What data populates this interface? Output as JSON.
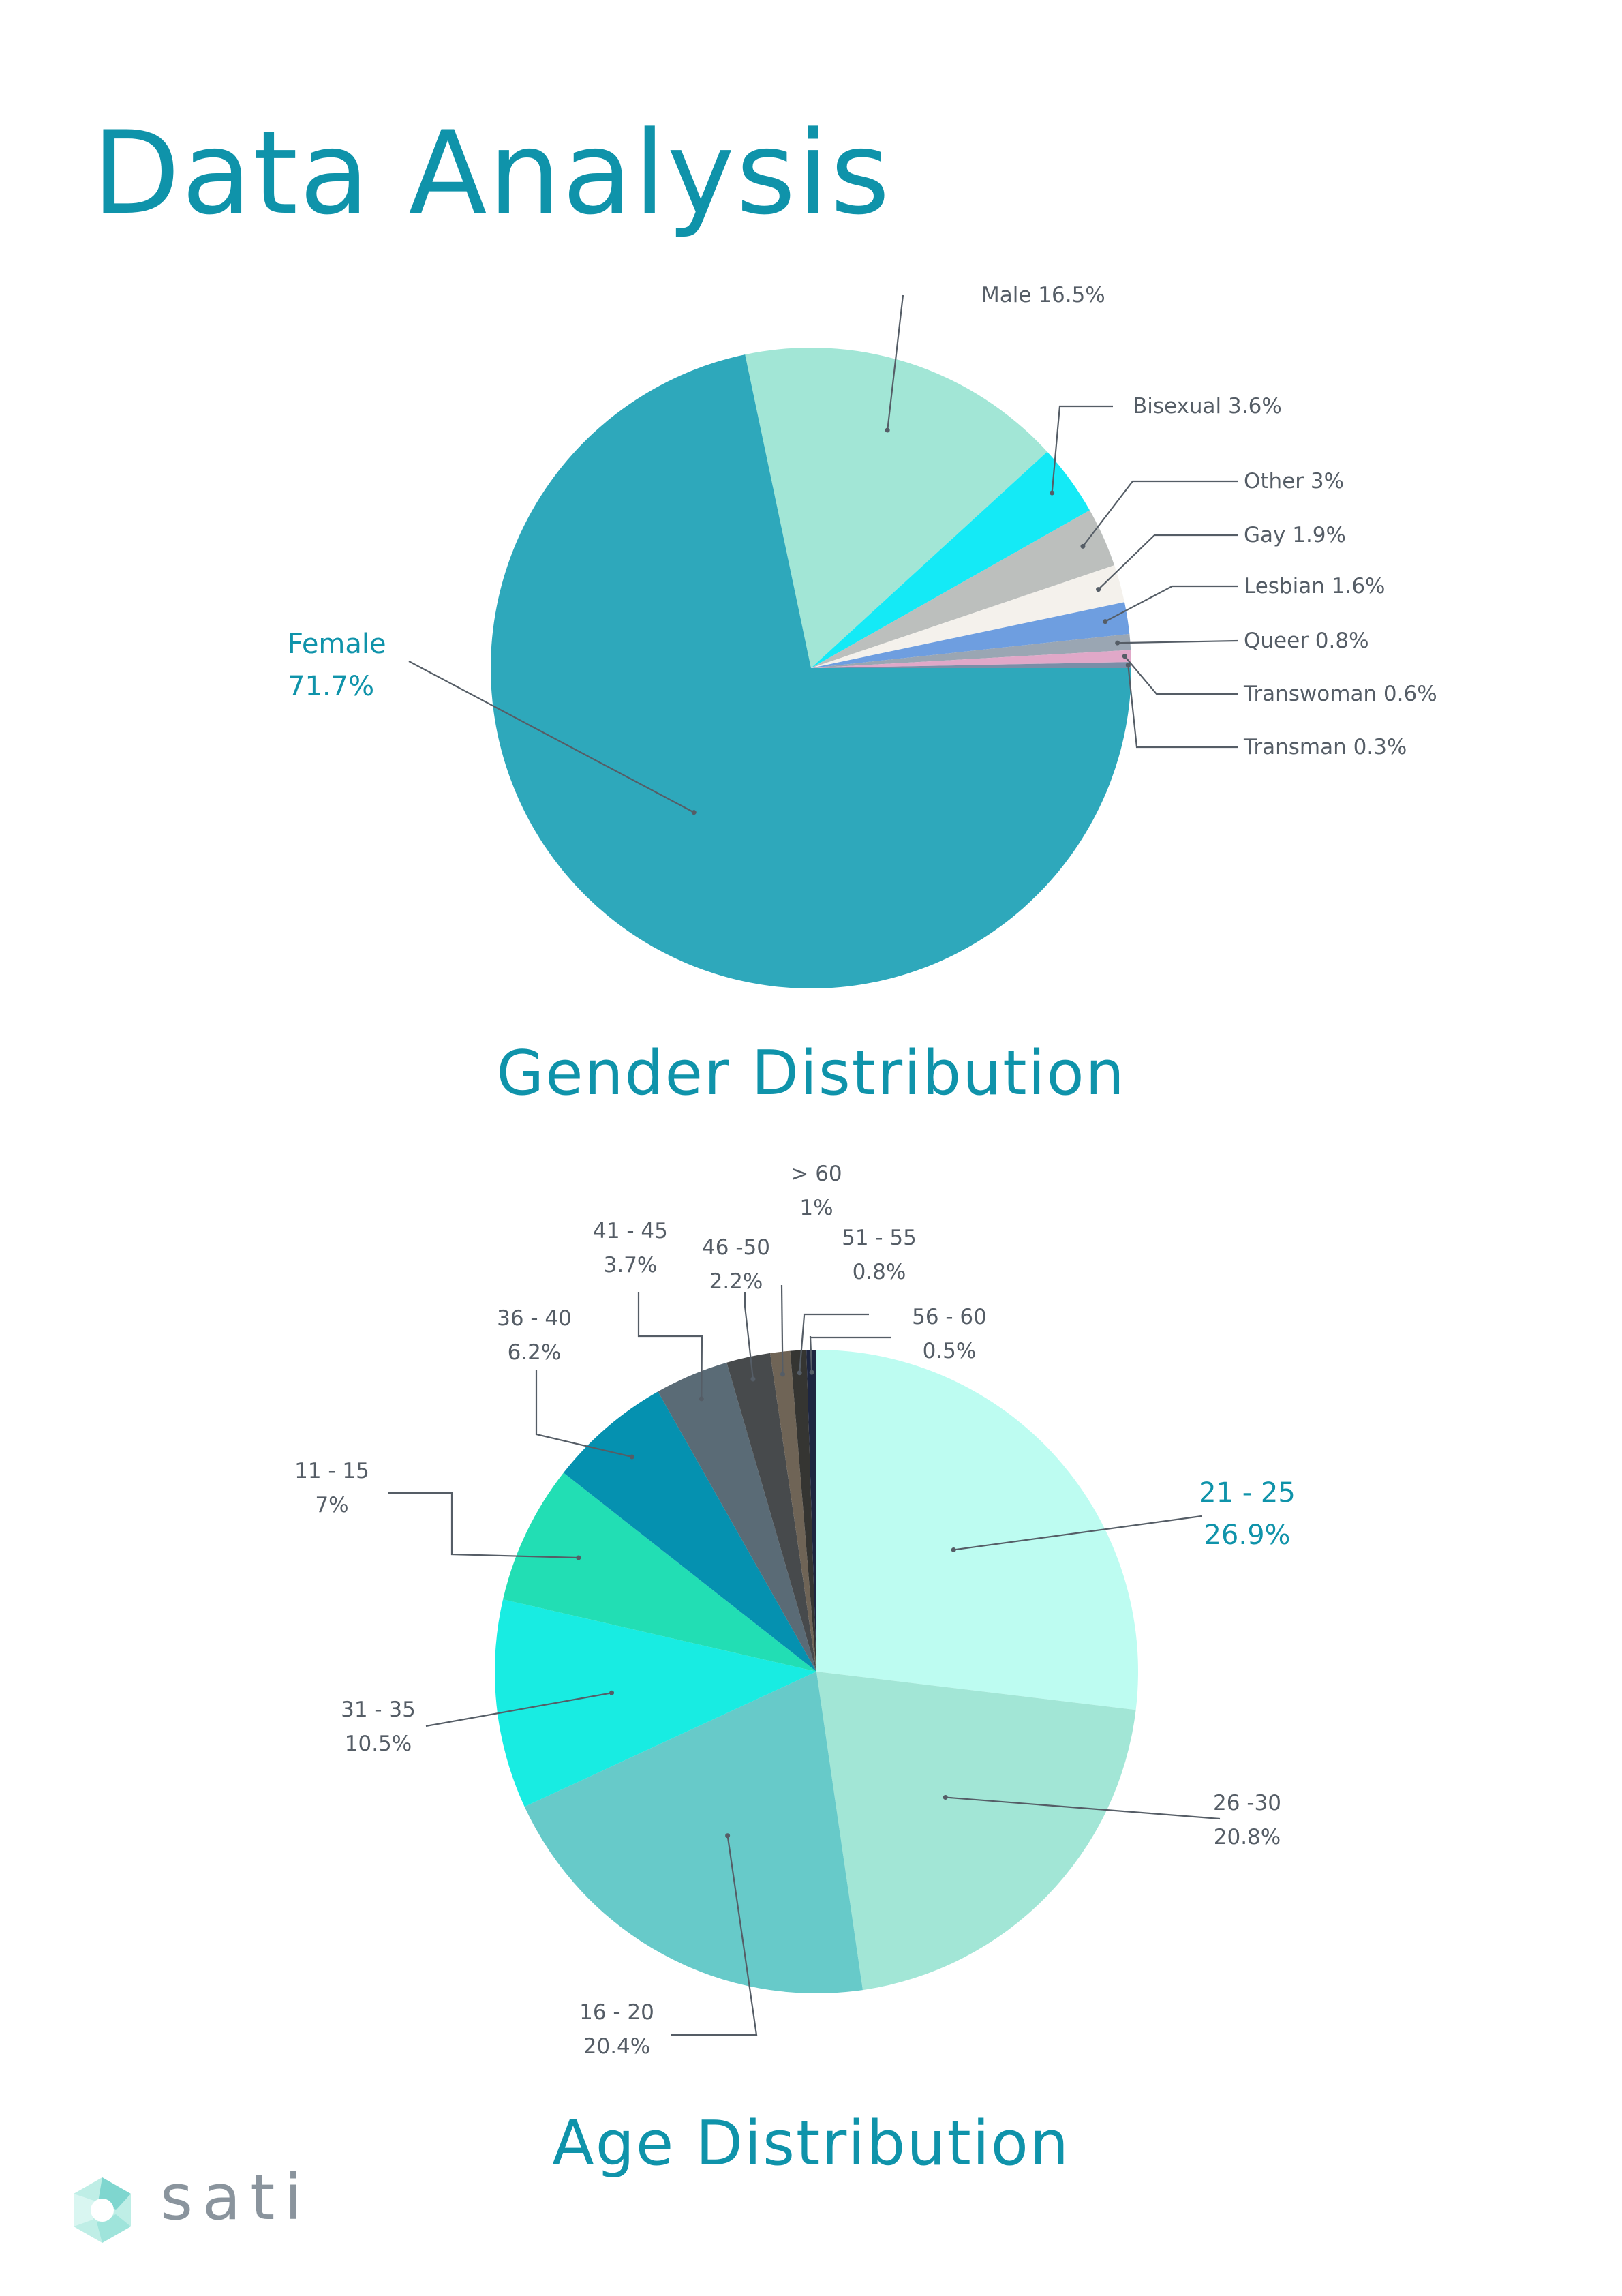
{
  "page": {
    "title": "Data Analysis"
  },
  "brand": {
    "name": "sati"
  },
  "colors": {
    "accent": "#0f93aa",
    "label": "#555d66",
    "leader": "#555d66"
  },
  "chart_data": [
    {
      "id": "gender",
      "type": "pie",
      "title": "Gender Distribution",
      "slices": [
        {
          "name": "Male",
          "value": 16.5,
          "line1": "Male 16.5%",
          "line2": "",
          "color": "#a2e6d6",
          "highlight": false
        },
        {
          "name": "Bisexual",
          "value": 3.6,
          "line1": "Bisexual 3.6%",
          "line2": "",
          "color": "#14eaf6",
          "highlight": false
        },
        {
          "name": "Other",
          "value": 3,
          "line1": "Other 3%",
          "line2": "",
          "color": "#bcbfbd",
          "highlight": false
        },
        {
          "name": "Gay",
          "value": 1.9,
          "line1": "Gay 1.9%",
          "line2": "",
          "color": "#f4f1ec",
          "highlight": false
        },
        {
          "name": "Lesbian",
          "value": 1.6,
          "line1": "Lesbian 1.6%",
          "line2": "",
          "color": "#6e9ee0",
          "highlight": false
        },
        {
          "name": "Queer",
          "value": 0.8,
          "line1": "Queer 0.8%",
          "line2": "",
          "color": "#9aa6b3",
          "highlight": false
        },
        {
          "name": "Transwoman",
          "value": 0.6,
          "line1": "Transwoman 0.6%",
          "line2": "",
          "color": "#e0a8c8",
          "highlight": false
        },
        {
          "name": "Transman",
          "value": 0.3,
          "line1": "Transman 0.3%",
          "line2": "",
          "color": "#7a8ea8",
          "highlight": false
        },
        {
          "name": "Female",
          "value": 71.7,
          "line1": "Female",
          "line2": "71.7%",
          "color": "#2ea8bb",
          "highlight": true
        }
      ]
    },
    {
      "id": "age",
      "type": "pie",
      "title": "Age Distribution",
      "slices": [
        {
          "name": "21 - 25",
          "value": 26.9,
          "line1": "21 - 25",
          "line2": "26.9%",
          "color": "#bdfcf1",
          "highlight": true
        },
        {
          "name": "26 -30",
          "value": 20.8,
          "line1": "26 -30",
          "line2": "20.8%",
          "color": "#a2e6d6",
          "highlight": false
        },
        {
          "name": "16 - 20",
          "value": 20.4,
          "line1": "16 - 20",
          "line2": "20.4%",
          "color": "#67cac9",
          "highlight": false
        },
        {
          "name": "31 - 35",
          "value": 10.5,
          "line1": "31 - 35",
          "line2": "10.5%",
          "color": "#18ece2",
          "highlight": false
        },
        {
          "name": "11 - 15",
          "value": 7,
          "line1": "11 - 15",
          "line2": "7%",
          "color": "#22deb4",
          "highlight": false
        },
        {
          "name": "36 - 40",
          "value": 6.2,
          "line1": "36 - 40",
          "line2": "6.2%",
          "color": "#0591b0",
          "highlight": false
        },
        {
          "name": "41 - 45",
          "value": 3.7,
          "line1": "41 - 45",
          "line2": "3.7%",
          "color": "#5a6b76",
          "highlight": false
        },
        {
          "name": "46 -50",
          "value": 2.2,
          "line1": "46 -50",
          "line2": "2.2%",
          "color": "#474a4c",
          "highlight": false
        },
        {
          "name": "> 60",
          "value": 1,
          "line1": "> 60",
          "line2": "1%",
          "color": "#6f6456",
          "highlight": false
        },
        {
          "name": "51 - 55",
          "value": 0.8,
          "line1": "51 - 55",
          "line2": "0.8%",
          "color": "#353532",
          "highlight": false
        },
        {
          "name": "56 - 60",
          "value": 0.5,
          "line1": "56 - 60",
          "line2": "0.5%",
          "color": "#1e2640",
          "highlight": false
        }
      ]
    }
  ]
}
